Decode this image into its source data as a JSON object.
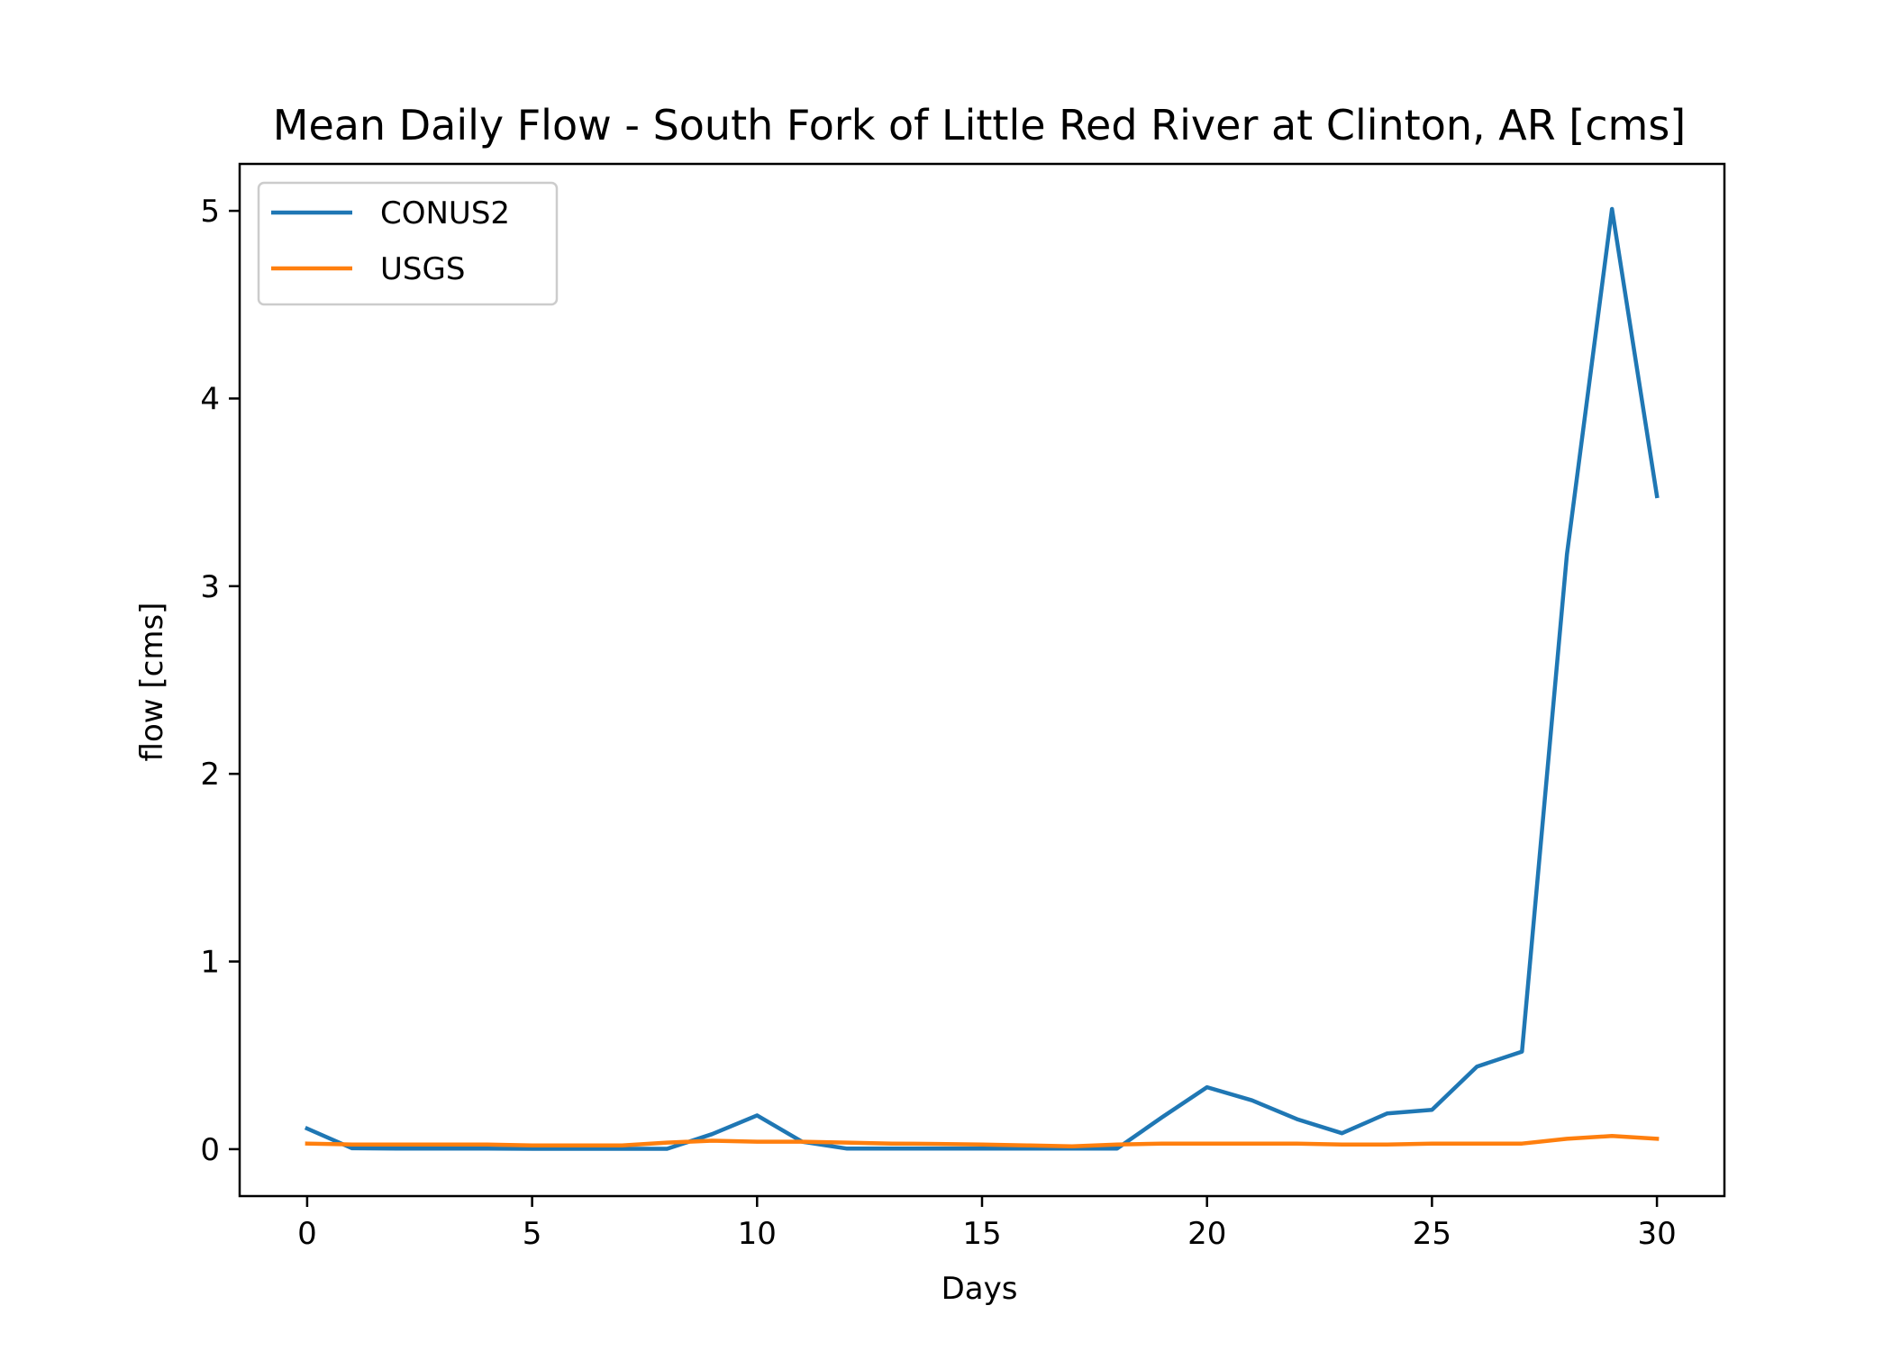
{
  "chart_data": {
    "type": "line",
    "title": "Mean Daily Flow - South Fork of Little Red River at Clinton, AR [cms]",
    "xlabel": "Days",
    "ylabel": "flow [cms]",
    "xlim": [
      -1.5,
      31.5
    ],
    "ylim": [
      -0.25,
      5.25
    ],
    "xticks": [
      0,
      5,
      10,
      15,
      20,
      25,
      30
    ],
    "yticks": [
      0,
      1,
      2,
      3,
      4,
      5
    ],
    "grid": false,
    "legend_position": "top-left",
    "x": [
      0,
      1,
      2,
      3,
      4,
      5,
      6,
      7,
      8,
      9,
      10,
      11,
      12,
      13,
      14,
      15,
      16,
      17,
      18,
      19,
      20,
      21,
      22,
      23,
      24,
      25,
      26,
      27,
      28,
      29,
      30
    ],
    "series": [
      {
        "name": "CONUS2",
        "color": "#1f77b4",
        "values": [
          0.11,
          0.005,
          0.003,
          0.003,
          0.003,
          0.002,
          0.002,
          0.002,
          0.002,
          0.08,
          0.18,
          0.04,
          0.003,
          0.003,
          0.003,
          0.003,
          0.003,
          0.003,
          0.003,
          0.17,
          0.33,
          0.26,
          0.16,
          0.085,
          0.19,
          0.21,
          0.44,
          0.52,
          3.17,
          5.01,
          3.48
        ]
      },
      {
        "name": "USGS",
        "color": "#ff7f0e",
        "values": [
          0.03,
          0.025,
          0.025,
          0.025,
          0.025,
          0.02,
          0.02,
          0.02,
          0.035,
          0.045,
          0.04,
          0.04,
          0.035,
          0.03,
          0.028,
          0.025,
          0.02,
          0.015,
          0.025,
          0.03,
          0.03,
          0.03,
          0.03,
          0.025,
          0.025,
          0.03,
          0.03,
          0.03,
          0.055,
          0.07,
          0.055
        ]
      }
    ]
  }
}
